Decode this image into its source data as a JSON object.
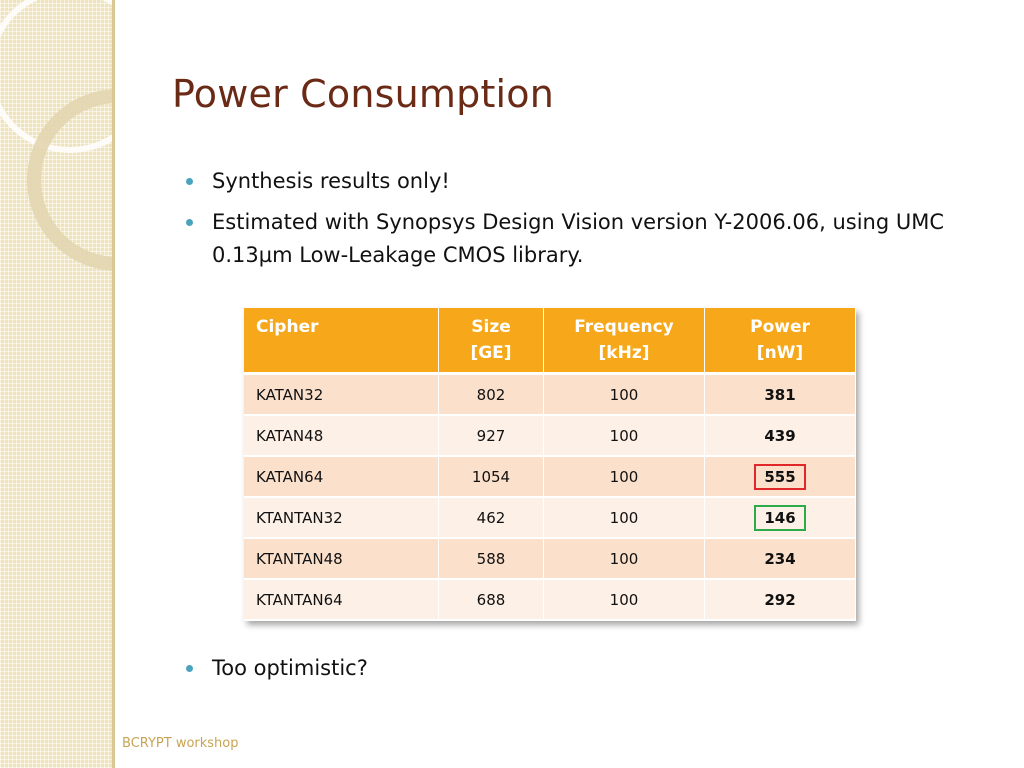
{
  "slide": {
    "title": "Power Consumption",
    "footer": "BCRYPT workshop"
  },
  "bullets": [
    {
      "text": "Synthesis results only!"
    },
    {
      "text": "Estimated with Synopsys Design Vision version Y-2006.06, using UMC 0.13µm Low-Leakage CMOS library."
    }
  ],
  "bullet_last": {
    "text": "Too optimistic?"
  },
  "table": {
    "headers": {
      "cipher": "Cipher",
      "size_line1": "Size",
      "size_line2": "[GE]",
      "freq_line1": "Frequency",
      "freq_line2": "[kHz]",
      "power_line1": "Power",
      "power_line2": "[nW]"
    },
    "rows": [
      {
        "cipher": "KATAN32",
        "size": "802",
        "frequency": "100",
        "power": "381",
        "highlight": ""
      },
      {
        "cipher": "KATAN48",
        "size": "927",
        "frequency": "100",
        "power": "439",
        "highlight": ""
      },
      {
        "cipher": "KATAN64",
        "size": "1054",
        "frequency": "100",
        "power": "555",
        "highlight": "red"
      },
      {
        "cipher": "KTANTAN32",
        "size": "462",
        "frequency": "100",
        "power": "146",
        "highlight": "green"
      },
      {
        "cipher": "KTANTAN48",
        "size": "588",
        "frequency": "100",
        "power": "234",
        "highlight": ""
      },
      {
        "cipher": "KTANTAN64",
        "size": "688",
        "frequency": "100",
        "power": "292",
        "highlight": ""
      }
    ]
  },
  "colors": {
    "title": "#6a2a16",
    "header_bg": "#f6a81a",
    "row_odd": "#fbe0cc",
    "row_even": "#fdf0e6",
    "highlight_red": "#e0282a",
    "highlight_green": "#2faa4a",
    "bullet": "#4aa3bd"
  }
}
